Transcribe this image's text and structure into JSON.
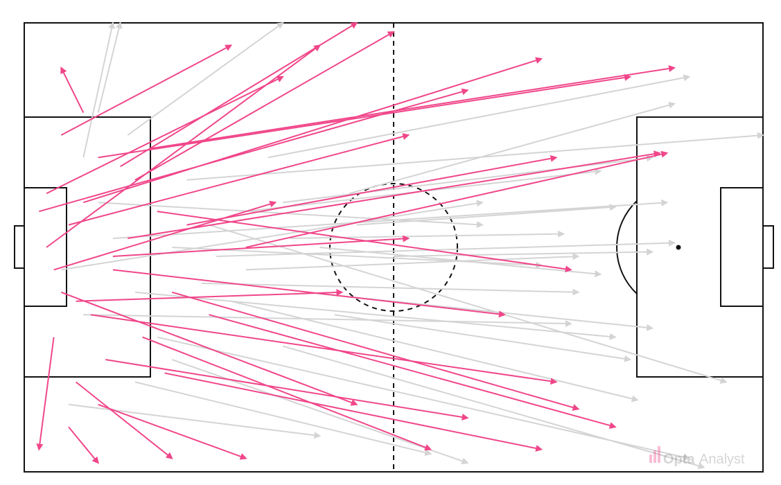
{
  "chart_data": {
    "type": "pass-map",
    "xlim": [
      0,
      100
    ],
    "ylim": [
      0,
      100
    ],
    "watermark": [
      "Opta",
      "Analyst"
    ],
    "series": [
      {
        "color": "#d4d4d4",
        "x": [
          10,
          20,
          15,
          25,
          8,
          30,
          18,
          35,
          12,
          40,
          22,
          28,
          5,
          33,
          15,
          38,
          45,
          10,
          26,
          20,
          42,
          30,
          8,
          50,
          35,
          14,
          24,
          44,
          6,
          36
        ],
        "y": [
          60,
          50,
          40,
          55,
          70,
          45,
          30,
          60,
          52,
          50,
          65,
          38,
          45,
          70,
          20,
          40,
          55,
          80,
          48,
          25,
          35,
          58,
          35,
          48,
          28,
          75,
          42,
          62,
          15,
          52
        ],
        "x_end": [
          62,
          70,
          80,
          95,
          12,
          75,
          90,
          85,
          87,
          78,
          100,
          83,
          62,
          90,
          55,
          85,
          80,
          13,
          88,
          60,
          82,
          78,
          74,
          85,
          92,
          35,
          75,
          88,
          40,
          73
        ],
        "y_end": [
          55,
          46,
          30,
          20,
          100,
          48,
          3,
          70,
          60,
          44,
          75,
          16,
          60,
          88,
          4,
          32,
          59,
          100,
          51,
          2,
          25,
          67,
          33,
          49,
          1,
          100,
          40,
          82,
          8,
          53
        ]
      },
      {
        "color": "#f0468a",
        "x": [
          3,
          5,
          8,
          4,
          10,
          6,
          12,
          7,
          15,
          5,
          9,
          14,
          11,
          3,
          18,
          6,
          20,
          8,
          13,
          16,
          4,
          22,
          10,
          25,
          2,
          17,
          12,
          30,
          7,
          19
        ],
        "y": [
          50,
          40,
          60,
          30,
          70,
          55,
          45,
          20,
          65,
          75,
          35,
          52,
          25,
          62,
          58,
          10,
          40,
          80,
          68,
          30,
          45,
          55,
          15,
          35,
          58,
          72,
          48,
          50,
          38,
          22
        ],
        "x_end": [
          40,
          45,
          70,
          2,
          82,
          52,
          65,
          20,
          50,
          28,
          72,
          86,
          60,
          35,
          74,
          10,
          75,
          5,
          45,
          55,
          34,
          72,
          30,
          80,
          60,
          88,
          52,
          87,
          43,
          70
        ],
        "y_end": [
          95,
          15,
          92,
          5,
          88,
          75,
          35,
          3,
          98,
          95,
          20,
          71,
          12,
          88,
          45,
          2,
          14,
          90,
          100,
          5,
          60,
          70,
          3,
          10,
          85,
          90,
          52,
          71,
          40,
          5
        ]
      }
    ]
  }
}
